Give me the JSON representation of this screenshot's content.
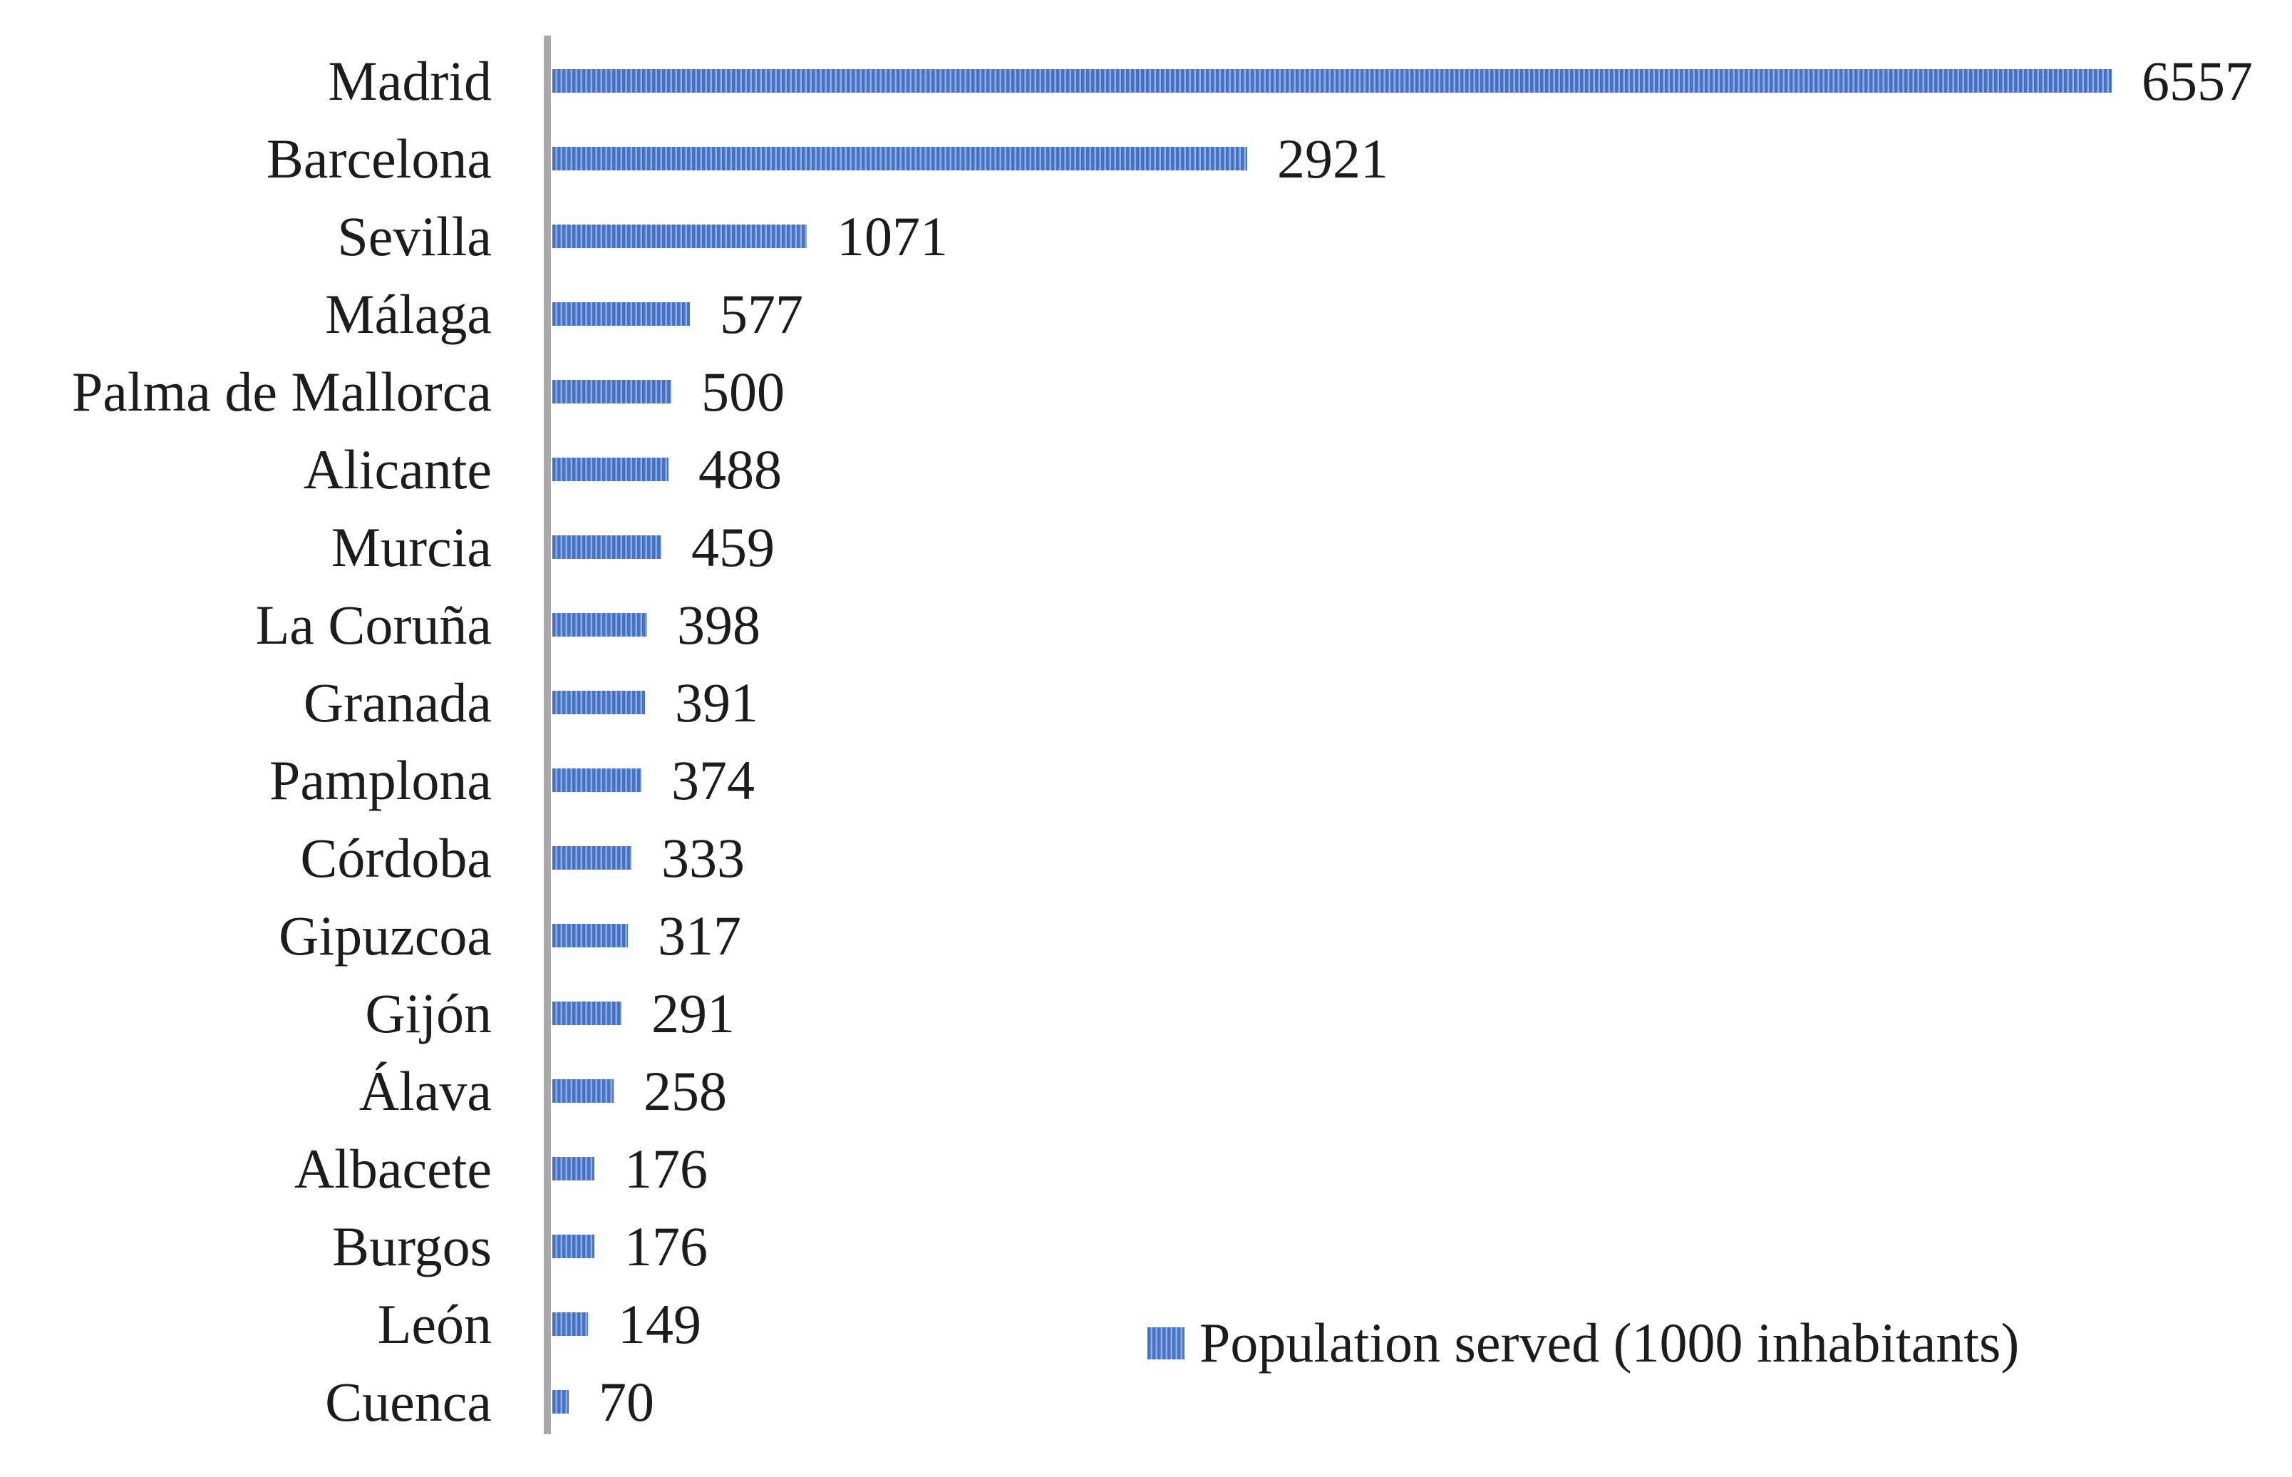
{
  "chart_data": {
    "type": "bar",
    "orientation": "horizontal",
    "title": "",
    "categories": [
      "Madrid",
      "Barcelona",
      "Sevilla",
      "Málaga",
      "Palma de Mallorca",
      "Alicante",
      "Murcia",
      "La Coruña",
      "Granada",
      "Pamplona",
      "Córdoba",
      "Gipuzcoa",
      "Gijón",
      "Álava",
      "Albacete",
      "Burgos",
      "León",
      "Cuenca"
    ],
    "values": [
      6557,
      2921,
      1071,
      577,
      500,
      488,
      459,
      398,
      391,
      374,
      333,
      317,
      291,
      258,
      176,
      176,
      149,
      70
    ],
    "data_labels_shown": true,
    "xlabel": "",
    "ylabel": "",
    "xlim": [
      0,
      6557
    ],
    "grid": false,
    "legend": {
      "label": "Population served (1000 inhabitants)",
      "position": "bottom-right"
    },
    "colors": {
      "bar": "#4472C4",
      "bar_stripe": "#93ADE0",
      "axis": "#A9A9A9",
      "text": "#1C1C1C"
    }
  }
}
